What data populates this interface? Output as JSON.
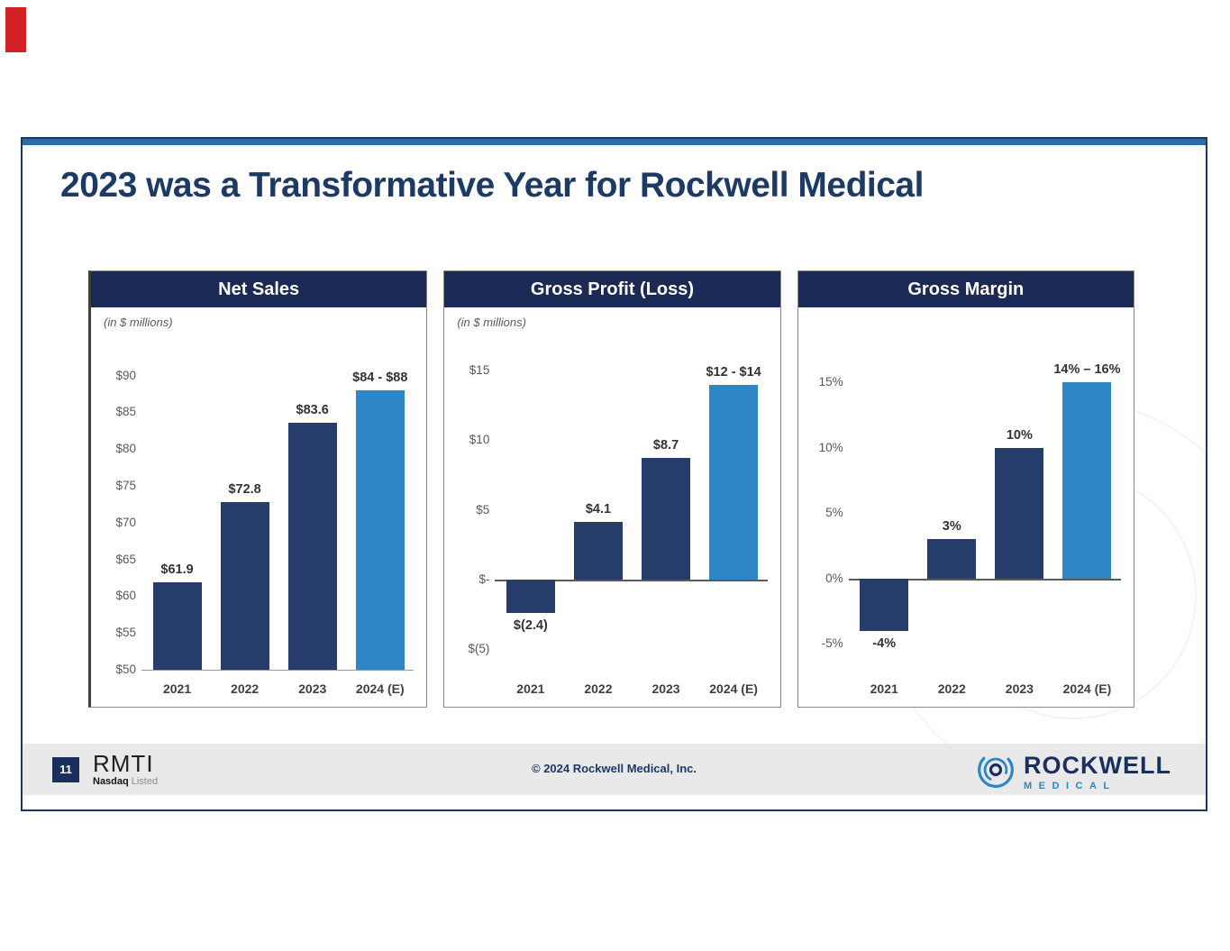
{
  "slide": {
    "title": "2023 was a Transformative Year for Rockwell Medical"
  },
  "colors": {
    "top_accent_bar": "#2a6bab",
    "panel_header": "#1b2a55",
    "bar_dark": "#263c6b",
    "bar_light": "#2d86c5",
    "title_navy": "#1d3a64",
    "footer_band": "#e9e9e9",
    "red_marker": "#d22027"
  },
  "footer": {
    "page_number": "11",
    "ticker": "RMTI",
    "listing_bold": "Nasdaq",
    "listing_light": "Listed",
    "copyright": "© 2024 Rockwell Medical, Inc.",
    "logo_primary": "ROCKWELL",
    "logo_secondary": "MEDICAL"
  },
  "chart_data": [
    {
      "type": "bar",
      "title": "Net Sales",
      "subtitle": "(in $ millions)",
      "categories": [
        "2021",
        "2022",
        "2023",
        "2024 (E)"
      ],
      "values": [
        61.9,
        72.8,
        83.6,
        88
      ],
      "value_labels": [
        "$61.9",
        "$72.8",
        "$83.6",
        "$84 - $88"
      ],
      "bar_colors": [
        "#263c6b",
        "#263c6b",
        "#263c6b",
        "#2d86c5"
      ],
      "ylim": [
        50,
        93.5
      ],
      "baseline": 50,
      "axis_line": 50,
      "axis_style": "base",
      "grid": false,
      "legend": false,
      "yticks": [
        {
          "v": 50,
          "label": "$50"
        },
        {
          "v": 55,
          "label": "$55"
        },
        {
          "v": 60,
          "label": "$60"
        },
        {
          "v": 65,
          "label": "$65"
        },
        {
          "v": 70,
          "label": "$70"
        },
        {
          "v": 75,
          "label": "$75"
        },
        {
          "v": 80,
          "label": "$80"
        },
        {
          "v": 85,
          "label": "$85"
        },
        {
          "v": 90,
          "label": "$90"
        }
      ]
    },
    {
      "type": "bar",
      "title": "Gross Profit (Loss)",
      "subtitle": "(in $ millions)",
      "categories": [
        "2021",
        "2022",
        "2023",
        "2024 (E)"
      ],
      "values": [
        -2.4,
        4.1,
        8.7,
        14
      ],
      "value_labels": [
        "$(2.4)",
        "$4.1",
        "$8.7",
        "$12 - $14"
      ],
      "bar_colors": [
        "#263c6b",
        "#263c6b",
        "#263c6b",
        "#2d86c5"
      ],
      "ylim": [
        -6.5,
        16.5
      ],
      "baseline": 0,
      "axis_line": 0,
      "axis_style": "zero",
      "grid": false,
      "legend": false,
      "yticks": [
        {
          "v": -5,
          "label": "$(5)"
        },
        {
          "v": 0,
          "label": "$-"
        },
        {
          "v": 5,
          "label": "$5"
        },
        {
          "v": 10,
          "label": "$10"
        },
        {
          "v": 15,
          "label": "$15"
        }
      ]
    },
    {
      "type": "bar",
      "title": "Gross Margin",
      "subtitle": "",
      "categories": [
        "2021",
        "2022",
        "2023",
        "2024 (E)"
      ],
      "values": [
        -4,
        3,
        10,
        15
      ],
      "value_labels": [
        "-4%",
        "3%",
        "10%",
        "14% – 16%"
      ],
      "bar_colors": [
        "#263c6b",
        "#263c6b",
        "#263c6b",
        "#2d86c5"
      ],
      "ylim": [
        -7,
        17.5
      ],
      "baseline": 0,
      "axis_line": 0,
      "axis_style": "zero",
      "grid": false,
      "legend": false,
      "yticks": [
        {
          "v": -5,
          "label": "-5%"
        },
        {
          "v": 0,
          "label": "0%"
        },
        {
          "v": 5,
          "label": "5%"
        },
        {
          "v": 10,
          "label": "10%"
        },
        {
          "v": 15,
          "label": "15%"
        }
      ]
    }
  ]
}
